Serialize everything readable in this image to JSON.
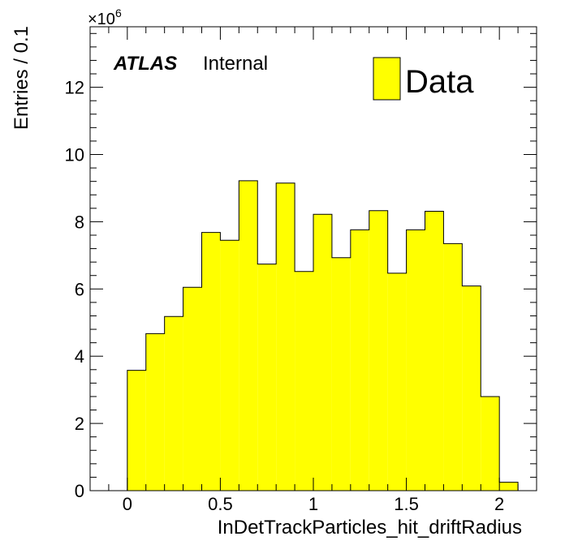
{
  "chart_data": {
    "type": "bar",
    "title": "",
    "xlabel": "InDetTrackParticles_hit_driftRadius",
    "ylabel": "Entries / 0.1",
    "y_multiplier_label": "×10",
    "y_multiplier_exponent": "6",
    "y_scale": 1000000,
    "xlim": [
      -0.2,
      2.2
    ],
    "ylim": [
      0,
      13.8
    ],
    "bin_width": 0.1,
    "bin_edges_start": 0.0,
    "values": [
      3.58,
      4.67,
      5.18,
      6.05,
      7.68,
      7.45,
      9.22,
      6.74,
      9.15,
      6.52,
      8.22,
      6.93,
      7.76,
      8.33,
      6.47,
      7.76,
      8.31,
      7.35,
      6.09,
      2.8,
      0.25
    ],
    "x_ticks": [
      {
        "value": 0,
        "label": "0"
      },
      {
        "value": 0.5,
        "label": "0.5"
      },
      {
        "value": 1,
        "label": "1"
      },
      {
        "value": 1.5,
        "label": "1.5"
      },
      {
        "value": 2,
        "label": "2"
      }
    ],
    "y_ticks": [
      {
        "value": 0,
        "label": "0"
      },
      {
        "value": 2,
        "label": "2"
      },
      {
        "value": 4,
        "label": "4"
      },
      {
        "value": 6,
        "label": "6"
      },
      {
        "value": 8,
        "label": "8"
      },
      {
        "value": 10,
        "label": "10"
      },
      {
        "value": 12,
        "label": "12"
      }
    ],
    "fill_color": "#ffff00",
    "line_color": "#000000",
    "legend": {
      "position": "top-right",
      "entries": [
        {
          "label": "Data",
          "color": "#ffff00"
        }
      ]
    },
    "experiment_label": "ATLAS",
    "status_label": "Internal",
    "grid": false
  }
}
